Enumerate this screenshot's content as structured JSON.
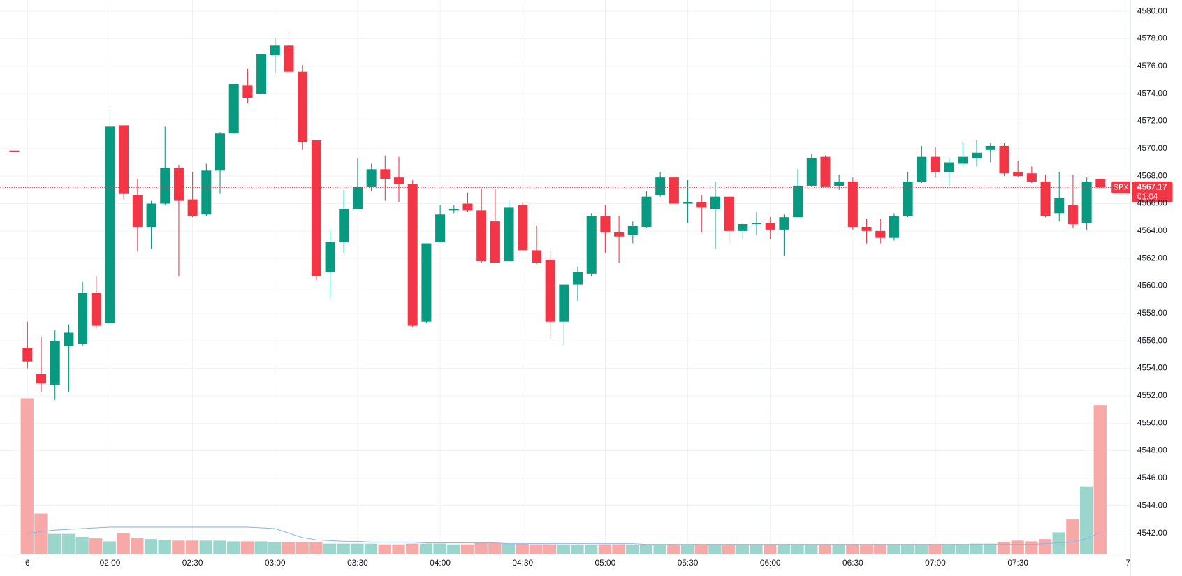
{
  "chart_data": {
    "type": "candlestick",
    "symbol": "SPX",
    "categories": [
      "6",
      null,
      null,
      null,
      null,
      null,
      "02:00",
      null,
      null,
      null,
      null,
      null,
      "02:30",
      null,
      null,
      null,
      null,
      null,
      "03:00",
      null,
      null,
      null,
      null,
      null,
      "03:30",
      null,
      null,
      null,
      null,
      null,
      "04:00",
      null,
      null,
      null,
      null,
      null,
      "04:30",
      null,
      null,
      null,
      null,
      null,
      "05:00",
      null,
      null,
      null,
      null,
      null,
      "05:30",
      null,
      null,
      null,
      null,
      null,
      "06:00",
      null,
      null,
      null,
      null,
      null,
      "06:30",
      null,
      null,
      null,
      null,
      null,
      "07:00",
      null,
      null,
      null,
      null,
      null,
      "07:30",
      null,
      null,
      null,
      null,
      null,
      null,
      null,
      "7"
    ],
    "open": [
      4555.5,
      4553.6,
      4552.8,
      4555.6,
      4555.8,
      4559.5,
      4557.3,
      4571.7,
      4566.6,
      4564.3,
      4566.0,
      4568.6,
      4566.3,
      4565.2,
      4568.4,
      4571.1,
      4574.6,
      4574.0,
      4576.8,
      4577.5,
      4575.6,
      4570.6,
      4561.0,
      4563.2,
      4565.6,
      4567.2,
      4568.5,
      4567.9,
      4567.4,
      4557.4,
      4563.2,
      4565.5,
      4566.0,
      4565.5,
      4564.7,
      4561.8,
      4565.9,
      4562.6,
      4561.9,
      4557.4,
      4560.1,
      4560.9,
      4565.1,
      4563.9,
      4563.7,
      4564.3,
      4566.6,
      4567.9,
      4566.0,
      4566.1,
      4565.6,
      4566.5,
      4564.0,
      4564.5,
      4564.6,
      4564.1,
      4565.0,
      4567.3,
      4569.4,
      4567.3,
      4567.6,
      4564.3,
      4564.0,
      4563.5,
      4565.1,
      4567.6,
      4569.4,
      4568.3,
      4568.9,
      4569.3,
      4569.9,
      4570.2,
      4568.3,
      4568.2,
      4567.6,
      4565.3,
      4565.9,
      4564.6,
      4567.8,
      null,
      null
    ],
    "high": [
      4557.4,
      4556.3,
      4556.8,
      4557.2,
      4560.3,
      4560.7,
      4572.8,
      4571.7,
      4567.8,
      4566.2,
      4571.6,
      4568.8,
      4568.3,
      4568.9,
      4571.2,
      4574.7,
      4575.8,
      4576.9,
      4578.0,
      4578.5,
      4576.1,
      4570.6,
      4564.1,
      4567.0,
      4569.3,
      4568.9,
      4569.5,
      4569.4,
      4567.7,
      4563.1,
      4565.9,
      4565.9,
      4566.8,
      4567.1,
      4567.1,
      4566.2,
      4566.1,
      4564.4,
      4562.6,
      4560.1,
      4561.4,
      4565.3,
      4565.9,
      4565.1,
      4564.7,
      4566.9,
      4568.3,
      4567.9,
      4567.7,
      4566.6,
      4567.6,
      4566.5,
      4564.6,
      4565.4,
      4565.0,
      4565.2,
      4568.5,
      4569.6,
      4569.5,
      4568.1,
      4567.9,
      4564.9,
      4564.9,
      4565.3,
      4568.3,
      4570.2,
      4570.1,
      4569.3,
      4570.5,
      4570.6,
      4570.4,
      4570.4,
      4569.1,
      4568.7,
      4568.1,
      4568.3,
      4568.1,
      4567.9,
      4567.8,
      null,
      null
    ],
    "low": [
      4554.0,
      4552.3,
      4551.7,
      4552.3,
      4555.6,
      4556.9,
      4557.2,
      4566.3,
      4562.5,
      4562.7,
      4565.9,
      4560.7,
      4565.0,
      4565.1,
      4566.7,
      4571.1,
      4573.3,
      4574.0,
      4575.5,
      4575.6,
      4569.9,
      4560.4,
      4559.1,
      4562.4,
      4565.6,
      4566.9,
      4566.2,
      4566.1,
      4557.0,
      4557.3,
      4563.2,
      4565.3,
      4565.4,
      4561.7,
      4561.7,
      4561.8,
      4562.6,
      4561.6,
      4556.2,
      4555.7,
      4558.9,
      4560.7,
      4562.4,
      4561.7,
      4563.1,
      4564.2,
      4566.5,
      4566.0,
      4564.6,
      4563.9,
      4562.7,
      4563.2,
      4563.4,
      4563.7,
      4563.4,
      4562.2,
      4565.0,
      4567.2,
      4567.2,
      4567.0,
      4564.1,
      4563.1,
      4563.1,
      4563.3,
      4565.0,
      4567.5,
      4567.9,
      4567.3,
      4568.7,
      4568.7,
      4569.0,
      4568.0,
      4567.9,
      4567.5,
      4565.0,
      4564.7,
      4564.2,
      4564.1,
      4567.17,
      null,
      null
    ],
    "close": [
      4554.5,
      4552.9,
      4556.0,
      4556.6,
      4559.5,
      4557.1,
      4571.6,
      4566.7,
      4564.3,
      4566.0,
      4568.6,
      4566.2,
      4565.1,
      4568.4,
      4571.1,
      4574.7,
      4573.7,
      4576.9,
      4577.5,
      4575.6,
      4570.5,
      4560.7,
      4563.2,
      4565.6,
      4567.2,
      4568.5,
      4567.8,
      4567.4,
      4557.1,
      4563.1,
      4565.2,
      4565.6,
      4565.5,
      4561.8,
      4561.7,
      4565.7,
      4562.6,
      4561.7,
      4557.4,
      4560.1,
      4561.0,
      4565.1,
      4563.9,
      4563.6,
      4564.4,
      4566.5,
      4567.9,
      4566.0,
      4566.1,
      4565.7,
      4566.5,
      4564.0,
      4564.5,
      4564.6,
      4564.1,
      4565.0,
      4567.3,
      4569.3,
      4567.2,
      4567.6,
      4564.3,
      4564.0,
      4563.5,
      4565.1,
      4567.6,
      4569.4,
      4568.3,
      4569.0,
      4569.4,
      4569.7,
      4570.2,
      4568.2,
      4568.0,
      4567.6,
      4565.1,
      4566.4,
      4564.5,
      4567.6,
      4567.17,
      null,
      null
    ],
    "volume": [
      207,
      54,
      27,
      27,
      23,
      21,
      17,
      28,
      21,
      20,
      19,
      18,
      18,
      18,
      18,
      17,
      17,
      17,
      16,
      16,
      16,
      16,
      14,
      14,
      14,
      14,
      13,
      13,
      14,
      14,
      14,
      13,
      13,
      15,
      15,
      14,
      14,
      13,
      13,
      12,
      12,
      12,
      13,
      13,
      12,
      12,
      13,
      12,
      13,
      13,
      12,
      12,
      12,
      12,
      12,
      12,
      13,
      12,
      12,
      12,
      12,
      13,
      12,
      12,
      12,
      12,
      13,
      13,
      13,
      14,
      14,
      16,
      18,
      17,
      20,
      29,
      46,
      90,
      198,
      null,
      null
    ],
    "volume_ma": [
      28,
      30,
      32,
      33,
      34,
      35,
      36,
      36,
      36,
      36,
      36,
      36,
      36,
      36,
      36,
      36,
      36,
      35,
      34,
      28,
      22,
      19,
      18,
      17,
      17,
      16,
      16,
      16,
      16,
      15,
      15,
      15,
      15,
      15,
      15,
      14,
      14,
      14,
      14,
      14,
      14,
      14,
      14,
      14,
      14,
      13,
      13,
      13,
      13,
      13,
      13,
      13,
      13,
      13,
      13,
      13,
      13,
      13,
      13,
      13,
      13,
      13,
      13,
      13,
      13,
      13,
      13,
      13,
      13,
      13,
      13,
      13,
      13,
      13,
      14,
      15,
      16,
      21,
      29,
      null,
      null
    ],
    "up_color": "#089981",
    "down_color": "#f23645",
    "volume_up_color": "#9ad6cc",
    "volume_down_color": "#f7a9a7",
    "volume_ma_color": "#90b4f0",
    "last_price": 4567.17,
    "countdown": "01:04",
    "ylim": [
      4540.47,
      4580.82
    ],
    "yticks": [
      {
        "value": 4542,
        "label": "4542.00"
      },
      {
        "value": 4544,
        "label": "4544.00"
      },
      {
        "value": 4546,
        "label": "4546.00"
      },
      {
        "value": 4548,
        "label": "4548.00"
      },
      {
        "value": 4550,
        "label": "4550.00"
      },
      {
        "value": 4552,
        "label": "4552.00"
      },
      {
        "value": 4554,
        "label": "4554.00"
      },
      {
        "value": 4556,
        "label": "4556.00"
      },
      {
        "value": 4558,
        "label": "4558.00"
      },
      {
        "value": 4560,
        "label": "4560.00"
      },
      {
        "value": 4562,
        "label": "4562.00"
      },
      {
        "value": 4564,
        "label": "4564.00"
      },
      {
        "value": 4566,
        "label": "4566.00"
      },
      {
        "value": 4568,
        "label": "4568.00"
      },
      {
        "value": 4570,
        "label": "4570.00"
      },
      {
        "value": 4572,
        "label": "4572.00"
      },
      {
        "value": 4574,
        "label": "4574.00"
      },
      {
        "value": 4576,
        "label": "4576.00"
      },
      {
        "value": 4578,
        "label": "4578.00"
      },
      {
        "value": 4580,
        "label": "4580.00"
      }
    ],
    "grid": true
  }
}
